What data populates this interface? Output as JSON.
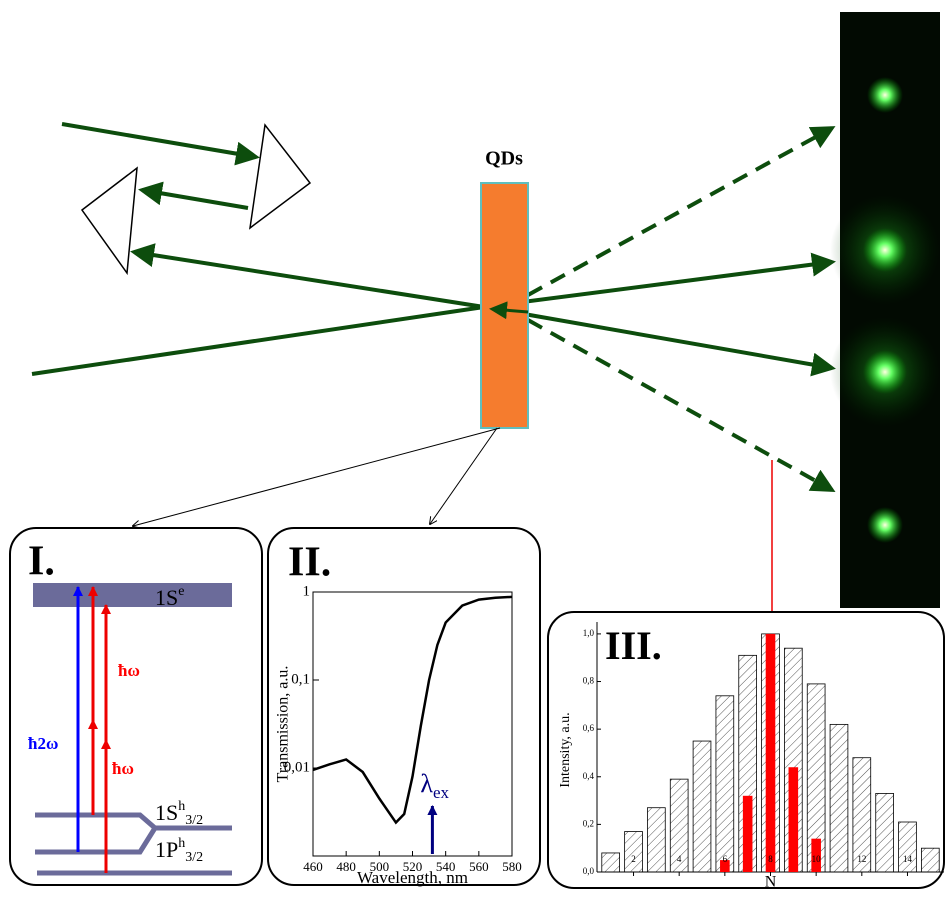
{
  "diagram": {
    "sample_label": "QDs",
    "panel_1": {
      "title": "I.",
      "levels": [
        {
          "main": "1S",
          "sup": "e"
        },
        {
          "main": "1S",
          "sup": "h",
          "sub": "3/2"
        },
        {
          "main": "1P",
          "sup": "h",
          "sub": "3/2"
        }
      ],
      "transitions": [
        {
          "label": "ħ2ω",
          "color": "#0000ff"
        },
        {
          "label": "ħω",
          "color": "#ff0000"
        },
        {
          "label": "ħω",
          "color": "#ff0000"
        }
      ]
    }
  },
  "chart_data": [
    {
      "type": "line",
      "title": "II.",
      "x_label": "Wavelength, nm",
      "y_label": "Transmission, a.u.",
      "x": [
        460,
        470,
        480,
        490,
        500,
        510,
        515,
        520,
        525,
        530,
        535,
        540,
        550,
        560,
        570,
        580
      ],
      "values": [
        0.0095,
        0.011,
        0.0125,
        0.009,
        0.0045,
        0.0024,
        0.003,
        0.008,
        0.03,
        0.1,
        0.25,
        0.45,
        0.7,
        0.82,
        0.86,
        0.88
      ],
      "color": "#000000",
      "log_y": true,
      "xlim": [
        460,
        580
      ],
      "xticks": [
        460,
        480,
        500,
        520,
        540,
        560,
        580
      ],
      "ylim": [
        0.001,
        1
      ],
      "yticks": [
        {
          "value": 0.01,
          "label": "0,01"
        },
        {
          "value": 0.1,
          "label": "0,1"
        },
        1
      ],
      "annotation": {
        "symbol": "λ",
        "subscript": "ex",
        "x": 532,
        "color": "#000080"
      }
    },
    {
      "type": "bar",
      "title": "III.",
      "x_label": "N",
      "y_label": "Intensity, a.u.",
      "x": [
        1,
        2,
        3,
        4,
        5,
        6,
        7,
        8,
        9,
        10,
        11,
        12,
        13,
        14,
        15
      ],
      "series": [
        {
          "color": "#888888",
          "hatch": true,
          "values": [
            0.08,
            0.17,
            0.27,
            0.39,
            0.55,
            0.74,
            0.91,
            1.0,
            0.94,
            0.79,
            0.62,
            0.48,
            0.33,
            0.21,
            0.1
          ]
        },
        {
          "color": "#ff0000",
          "hatch": false,
          "values": [
            null,
            null,
            null,
            null,
            null,
            0.05,
            0.32,
            1.0,
            0.44,
            0.14,
            null,
            null,
            null,
            null,
            null
          ]
        }
      ],
      "xlim": [
        0.4,
        15.6
      ],
      "xticks": [
        2,
        4,
        6,
        8,
        10,
        12,
        14
      ],
      "ylim": [
        0,
        1.05
      ],
      "yticks": [
        {
          "value": 0,
          "label": "0,0"
        },
        {
          "value": 0.2,
          "label": "0,2"
        },
        {
          "value": 0.4,
          "label": "0,4"
        },
        {
          "value": 0.6,
          "label": "0,6"
        },
        {
          "value": 0.8,
          "label": "0,8"
        },
        {
          "value": 1,
          "label": "1,0"
        }
      ]
    }
  ]
}
